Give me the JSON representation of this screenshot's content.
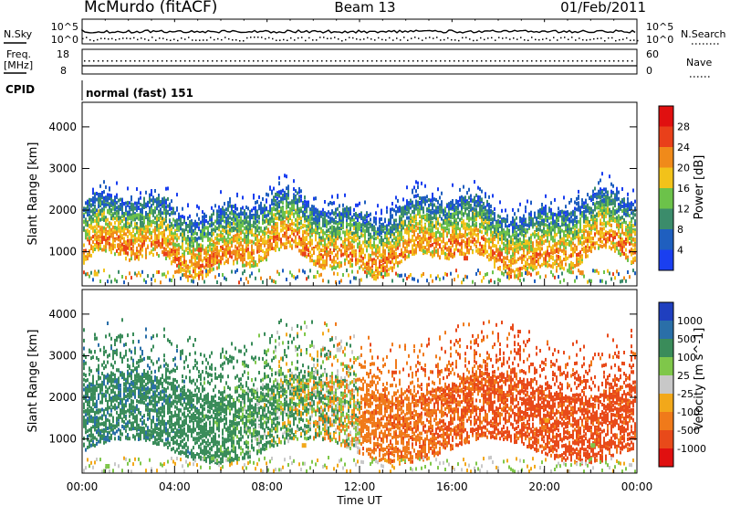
{
  "header": {
    "station": "McMurdo (fitACF)",
    "beam": "Beam 13",
    "date": "01/Feb/2011"
  },
  "noise_panel": {
    "left_label": "N.Sky",
    "right_label": "N.Search",
    "scale_top": "10^5",
    "scale_bottom": "10^0",
    "right_scale_top": "10^5",
    "right_scale_bottom": "10^0"
  },
  "freq_panel": {
    "left_label_line1": "Freq.",
    "left_label_line2": "[MHz]",
    "right_label": "Nave",
    "left_ticks": [
      "18",
      "8"
    ],
    "right_ticks": [
      "60",
      "0"
    ]
  },
  "cpid": {
    "label": "CPID",
    "value": "normal (fast) 151"
  },
  "chart_data": [
    {
      "type": "heatmap",
      "title": "",
      "xlabel": "",
      "ylabel": "Slant Range [km]",
      "xlim": [
        "00:00",
        "24:00"
      ],
      "ylim": [
        180,
        4590
      ],
      "yticks": [
        "1000",
        "2000",
        "3000",
        "4000"
      ],
      "colorbar": {
        "label": "Power [dB]",
        "levels": [
          "4",
          "8",
          "12",
          "16",
          "20",
          "24",
          "28"
        ],
        "colors": [
          "#1a3ff0",
          "#1f5fbf",
          "#3b8c6b",
          "#6cc24a",
          "#f2c21a",
          "#f08a1a",
          "#e9401a",
          "#e01010"
        ]
      },
      "series": [
        {
          "time_h": 0.5,
          "range_km": 520,
          "power_db": 18
        },
        {
          "time_h": 1.5,
          "range_km": 1200,
          "power_db": 24
        },
        {
          "time_h": 2.5,
          "range_km": 1700,
          "power_db": 12
        },
        {
          "time_h": 3.5,
          "range_km": 1000,
          "power_db": 28
        },
        {
          "time_h": 5.0,
          "range_km": 1100,
          "power_db": 26
        },
        {
          "time_h": 6.5,
          "range_km": 1050,
          "power_db": 24
        },
        {
          "time_h": 8.0,
          "range_km": 1200,
          "power_db": 22
        },
        {
          "time_h": 9.5,
          "range_km": 1000,
          "power_db": 28
        },
        {
          "time_h": 11.0,
          "range_km": 1500,
          "power_db": 14
        },
        {
          "time_h": 12.5,
          "range_km": 1600,
          "power_db": 10
        },
        {
          "time_h": 14.5,
          "range_km": 1200,
          "power_db": 22
        },
        {
          "time_h": 16.5,
          "range_km": 900,
          "power_db": 28
        },
        {
          "time_h": 18.0,
          "range_km": 1000,
          "power_db": 26
        },
        {
          "time_h": 19.5,
          "range_km": 1100,
          "power_db": 20
        },
        {
          "time_h": 21.5,
          "range_km": 550,
          "power_db": 24
        }
      ]
    },
    {
      "type": "heatmap",
      "title": "",
      "xlabel": "Time UT",
      "ylabel": "Slant Range [km]",
      "xlim": [
        "00:00",
        "24:00"
      ],
      "ylim": [
        180,
        4590
      ],
      "xticks": [
        "00:00",
        "04:00",
        "08:00",
        "12:00",
        "16:00",
        "20:00",
        "00:00"
      ],
      "yticks": [
        "1000",
        "2000",
        "3000",
        "4000"
      ],
      "colorbar": {
        "label": "Velocity [m s^-1]",
        "levels": [
          "1000",
          "500",
          "100",
          "25",
          "-25",
          "-100",
          "-500",
          "-1000"
        ],
        "colors": [
          "#1f3fbf",
          "#2a6fa8",
          "#3a8c5a",
          "#7fc74a",
          "#c8c8c8",
          "#f2a81a",
          "#f07a1a",
          "#e84a1a",
          "#e01010"
        ]
      },
      "series": [
        {
          "time_h": 1.0,
          "range_km": 400,
          "velocity_ms": 50
        },
        {
          "time_h": 2.5,
          "range_km": 1300,
          "velocity_ms": 300
        },
        {
          "time_h": 3.0,
          "range_km": 2300,
          "velocity_ms": 800
        },
        {
          "time_h": 5.5,
          "range_km": 1300,
          "velocity_ms": 200
        },
        {
          "time_h": 7.5,
          "range_km": 1200,
          "velocity_ms": 300
        },
        {
          "time_h": 9.5,
          "range_km": 900,
          "velocity_ms": -100
        },
        {
          "time_h": 11.0,
          "range_km": 3200,
          "velocity_ms": 0
        },
        {
          "time_h": 12.5,
          "range_km": 1200,
          "velocity_ms": -150
        },
        {
          "time_h": 14.5,
          "range_km": 1500,
          "velocity_ms": -300
        },
        {
          "time_h": 16.5,
          "range_km": 1000,
          "velocity_ms": -500
        },
        {
          "time_h": 18.0,
          "range_km": 2200,
          "velocity_ms": -400
        },
        {
          "time_h": 20.0,
          "range_km": 1500,
          "velocity_ms": -100
        },
        {
          "time_h": 22.0,
          "range_km": 900,
          "velocity_ms": 50
        }
      ]
    }
  ]
}
